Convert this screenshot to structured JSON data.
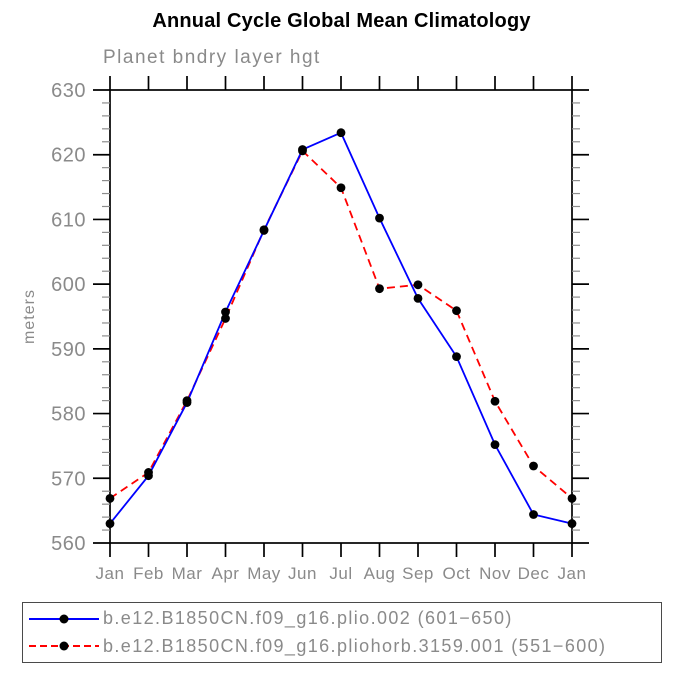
{
  "title": "Annual Cycle Global Mean Climatology",
  "subtitle": "Planet bndry layer hgt",
  "chart_data": {
    "type": "line",
    "categories": [
      "Jan",
      "Feb",
      "Mar",
      "Apr",
      "May",
      "Jun",
      "Jul",
      "Aug",
      "Sep",
      "Oct",
      "Nov",
      "Dec",
      "Jan"
    ],
    "xlabel": "",
    "ylabel": "meters",
    "ylim": [
      560,
      630
    ],
    "ytick_major": 10,
    "ytick_minor": 2,
    "grid": false,
    "legend_position": "bottom",
    "marker": "filled-circle",
    "marker_color": "#000000",
    "series": [
      {
        "name": "b.e12.B1850CN.f09_g16.plio.002 (601−650)",
        "color": "#0000ff",
        "line_style": "solid",
        "values": [
          563.0,
          570.4,
          581.7,
          595.7,
          608.3,
          620.8,
          623.4,
          610.2,
          597.8,
          588.8,
          575.2,
          564.4,
          563.0
        ]
      },
      {
        "name": "b.e12.B1850CN.f09_g16.pliohorb.3159.001 (551−600)",
        "color": "#ff0000",
        "line_style": "dashed",
        "values": [
          566.9,
          570.9,
          582.0,
          594.7,
          608.4,
          620.6,
          614.9,
          599.3,
          599.9,
          595.9,
          581.9,
          571.9,
          566.9
        ]
      }
    ]
  },
  "legend": {
    "entries": [
      {
        "label": "b.e12.B1850CN.f09_g16.plio.002 (601−650)"
      },
      {
        "label": "b.e12.B1850CN.f09_g16.pliohorb.3159.001 (551−600)"
      }
    ]
  },
  "colors": {
    "axis": "#000000",
    "minor_tick": "#8d8d8d",
    "text_gray": "#8a8a8a",
    "title_text": "#000000"
  }
}
